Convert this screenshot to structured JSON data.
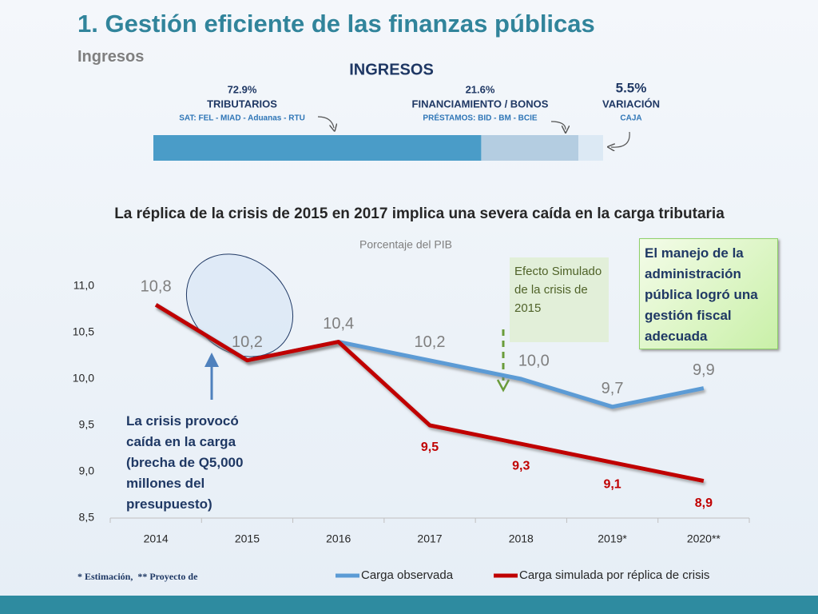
{
  "header": {
    "title": "1.  Gestión eficiente de las finanzas públicas",
    "subtitle": "Ingresos"
  },
  "ingresos": {
    "title": "INGRESOS",
    "segments": [
      {
        "value": 72.9,
        "label": "72.9%",
        "name": "TRIBUTARIOS",
        "detail": "SAT:  FEL - MIAD - Aduanas - RTU",
        "color": "#4a9cc8"
      },
      {
        "value": 21.6,
        "label": "21.6%",
        "name": "FINANCIAMIENTO / BONOS",
        "detail": "PRÉSTAMOS:  BID - BM - BCIE",
        "color": "#b4cde1"
      },
      {
        "value": 5.5,
        "label": "5.5%",
        "name": "VARIACIÓN",
        "detail": "CAJA",
        "color": "#dce9f4"
      }
    ]
  },
  "chart_data": {
    "type": "line",
    "title": "La réplica de la crisis de 2015 en 2017 implica una severa caída en la carga tributaria",
    "subtitle": "Porcentaje del PIB",
    "categories": [
      "2014",
      "2015",
      "2016",
      "2017",
      "2018",
      "2019*",
      "2020**"
    ],
    "series": [
      {
        "name": "Carga  observada",
        "color": "#5b9bd5",
        "values": [
          10.8,
          10.2,
          10.4,
          10.2,
          10.0,
          9.7,
          9.9
        ],
        "value_labels": [
          "10,8",
          "10,2",
          "10,4",
          "10,2",
          "10,0",
          "9,7",
          "9,9"
        ]
      },
      {
        "name": "Carga simulada por réplica de crisis",
        "color": "#c00000",
        "values": [
          10.8,
          10.2,
          10.4,
          9.5,
          9.3,
          9.1,
          8.9
        ],
        "value_labels": [
          null,
          null,
          null,
          "9,5",
          "9,3",
          "9,1",
          "8,9"
        ]
      }
    ],
    "ylim": [
      8.5,
      11
    ],
    "yticks": [
      {
        "value": 8.5,
        "label": "8,5"
      },
      {
        "value": 9,
        "label": "9,0"
      },
      {
        "value": 9.5,
        "label": "9,5"
      },
      {
        "value": 10,
        "label": "10,0"
      },
      {
        "value": 10.5,
        "label": "10,5"
      },
      {
        "value": 11,
        "label": "11,0"
      }
    ],
    "grid": false,
    "legend": "bottom",
    "annotations": [
      "Efecto Simulado de la crisis de 2015",
      "El manejo de la administración pública logró una gestión fiscal adecuada",
      "La crisis provocó caída en la carga (brecha de Q5,000 millones del presupuesto)"
    ],
    "footnote": "* Estimación,  ** Proyecto de"
  }
}
